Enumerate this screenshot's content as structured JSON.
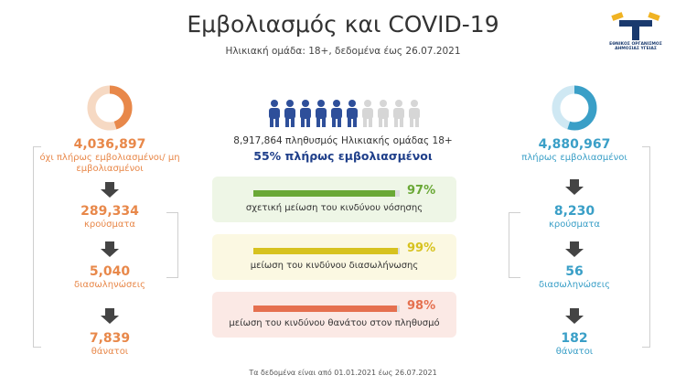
{
  "header": {
    "title": "Εμβολιασμός και COVID-19",
    "subtitle": "Ηλικιακή ομάδα: 18+, δεδομένα έως 26.07.2021",
    "logo_text": "ΕΘΝΙΚΟΣ ΟΡΓΑΝΙΣΜΟΣ ΔΗΜΟΣΙΑΣ ΥΓΕΙΑΣ"
  },
  "colors": {
    "orange": "#e8884a",
    "blue": "#3a9fc7",
    "green": "#6aa836",
    "yellow": "#e3cf3a",
    "red": "#e5704f",
    "navy": "#1f3f8a"
  },
  "left": {
    "total": "4,036,897",
    "total_label": "όχι πλήρως εμβολιασμένοι/ μη εμβολιασμένοι",
    "cases": "289,334",
    "cases_label": "κρούσματα",
    "intubations": "5,040",
    "intubations_label": "διασωληνώσεις",
    "deaths": "7,839",
    "deaths_label": "θάνατοι"
  },
  "right": {
    "total": "4,880,967",
    "total_label": "πλήρως εμβολιασμένοι",
    "cases": "8,230",
    "cases_label": "κρούσματα",
    "intubations": "56",
    "intubations_label": "διασωληνώσεις",
    "deaths": "182",
    "deaths_label": "θάνατοι"
  },
  "center": {
    "population": "8,917,864 πληθυσμός Ηλικιακής ομάδας 18+",
    "percent_vaccinated": "55% πλήρως εμβολιασμένοι",
    "vaccinated_fraction": 0.55,
    "people_icons_total": 10,
    "people_icons_filled": 6
  },
  "cards": [
    {
      "value": "97%",
      "fraction": 0.97,
      "label": "σχετική μείωση του κινδύνου νόσησης",
      "color": "#6aa836",
      "bg": "#eef6e6"
    },
    {
      "value": "99%",
      "fraction": 0.99,
      "label": "μείωση του κινδύνου διασωλήνωσης",
      "color": "#d7c21f",
      "bg": "#fbf8e2"
    },
    {
      "value": "98%",
      "fraction": 0.98,
      "label": "μείωση του κινδύνου θανάτου στον πληθυσμό",
      "color": "#e5704f",
      "bg": "#fbe9e5"
    }
  ],
  "footer": "Τα δεδομένα είναι από 01.01.2021 έως 26.07.2021"
}
